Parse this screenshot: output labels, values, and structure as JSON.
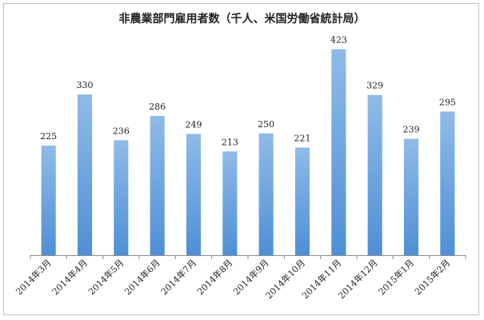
{
  "chart_data": {
    "type": "bar",
    "title": "非農業部門雇用者数（千人、米国労働省統計局）",
    "categories": [
      "2014年3月",
      "2014年4月",
      "2014年5月",
      "2014年6月",
      "2014年7月",
      "2014年8月",
      "2014年9月",
      "2014年10月",
      "2014年11月",
      "2014年12月",
      "2015年1月",
      "2015年2月"
    ],
    "values": [
      225,
      330,
      236,
      286,
      249,
      213,
      250,
      221,
      423,
      329,
      239,
      295
    ],
    "ylim": [
      0,
      450
    ],
    "grid": false,
    "legend": "none",
    "bar_color": "#4f8fd6",
    "bar_color_light": "#8fbbe8"
  }
}
